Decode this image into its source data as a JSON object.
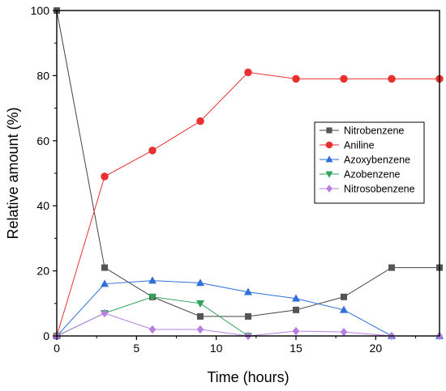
{
  "chart_data": {
    "type": "line",
    "xlabel": "Time (hours)",
    "ylabel": "Relative amount (%)",
    "xlim": [
      0,
      24
    ],
    "ylim": [
      0,
      100
    ],
    "xticks": [
      0,
      5,
      10,
      15,
      20
    ],
    "yticks": [
      0,
      20,
      40,
      60,
      80,
      100
    ],
    "grid": false,
    "legend_position": "right",
    "series": [
      {
        "name": "Nitrobenzene",
        "marker": "square",
        "color": "#555555",
        "line_color": "#444444",
        "x": [
          0,
          3,
          6,
          9,
          12,
          15,
          18,
          21,
          24
        ],
        "y": [
          100,
          21,
          12,
          6,
          6,
          8,
          12,
          21,
          21
        ]
      },
      {
        "name": "Aniline",
        "marker": "circle",
        "color": "#e8312f",
        "line_color": "#e8312f",
        "x": [
          0,
          3,
          6,
          9,
          12,
          15,
          18,
          21,
          24
        ],
        "y": [
          0,
          49,
          57,
          66,
          81,
          79,
          79,
          79,
          79
        ]
      },
      {
        "name": "Azoxybenzene",
        "marker": "triangle-up",
        "color": "#2f6fd8",
        "line_color": "#2f6fd8",
        "x": [
          0,
          3,
          6,
          9,
          12,
          15,
          18,
          21,
          24
        ],
        "y": [
          0,
          16,
          17,
          16.3,
          13.5,
          11.5,
          8,
          0,
          0
        ]
      },
      {
        "name": "Azobenzene",
        "marker": "triangle-down",
        "color": "#2ea55a",
        "line_color": "#2ea55a",
        "x": [
          0,
          3,
          6,
          9,
          12
        ],
        "y": [
          0,
          7,
          12,
          10,
          0
        ]
      },
      {
        "name": "Nitrosobenzene",
        "marker": "diamond",
        "color": "#b77ee0",
        "line_color": "#b77ee0",
        "x": [
          0,
          3,
          6,
          9,
          12,
          15,
          18,
          21,
          24
        ],
        "y": [
          0,
          7,
          2,
          2,
          0,
          1.5,
          1.2,
          0,
          0
        ]
      }
    ]
  }
}
